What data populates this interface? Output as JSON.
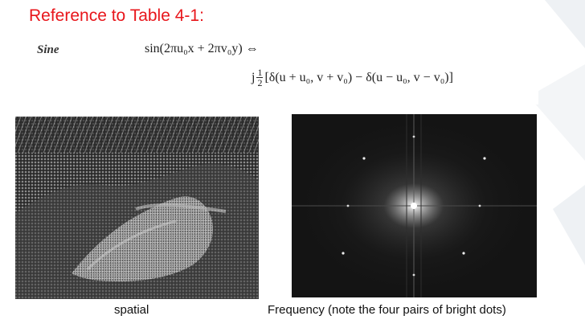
{
  "slide": {
    "title": "Reference to Table 4-1:",
    "title_color": "#e8161b",
    "formula": {
      "name": "Sine",
      "line1": "sin(2πu₀x + 2πv₀y) ⇔",
      "line2_prefix": "j",
      "line2_frac_num": "1",
      "line2_frac_den": "2",
      "line2_rest": "[δ(u + u₀, v + v₀) − δ(u − u₀, v − v₀)]"
    },
    "figures": [
      {
        "caption": "spatial"
      },
      {
        "caption": "Frequency (note the four pairs of bright dots)"
      }
    ]
  }
}
